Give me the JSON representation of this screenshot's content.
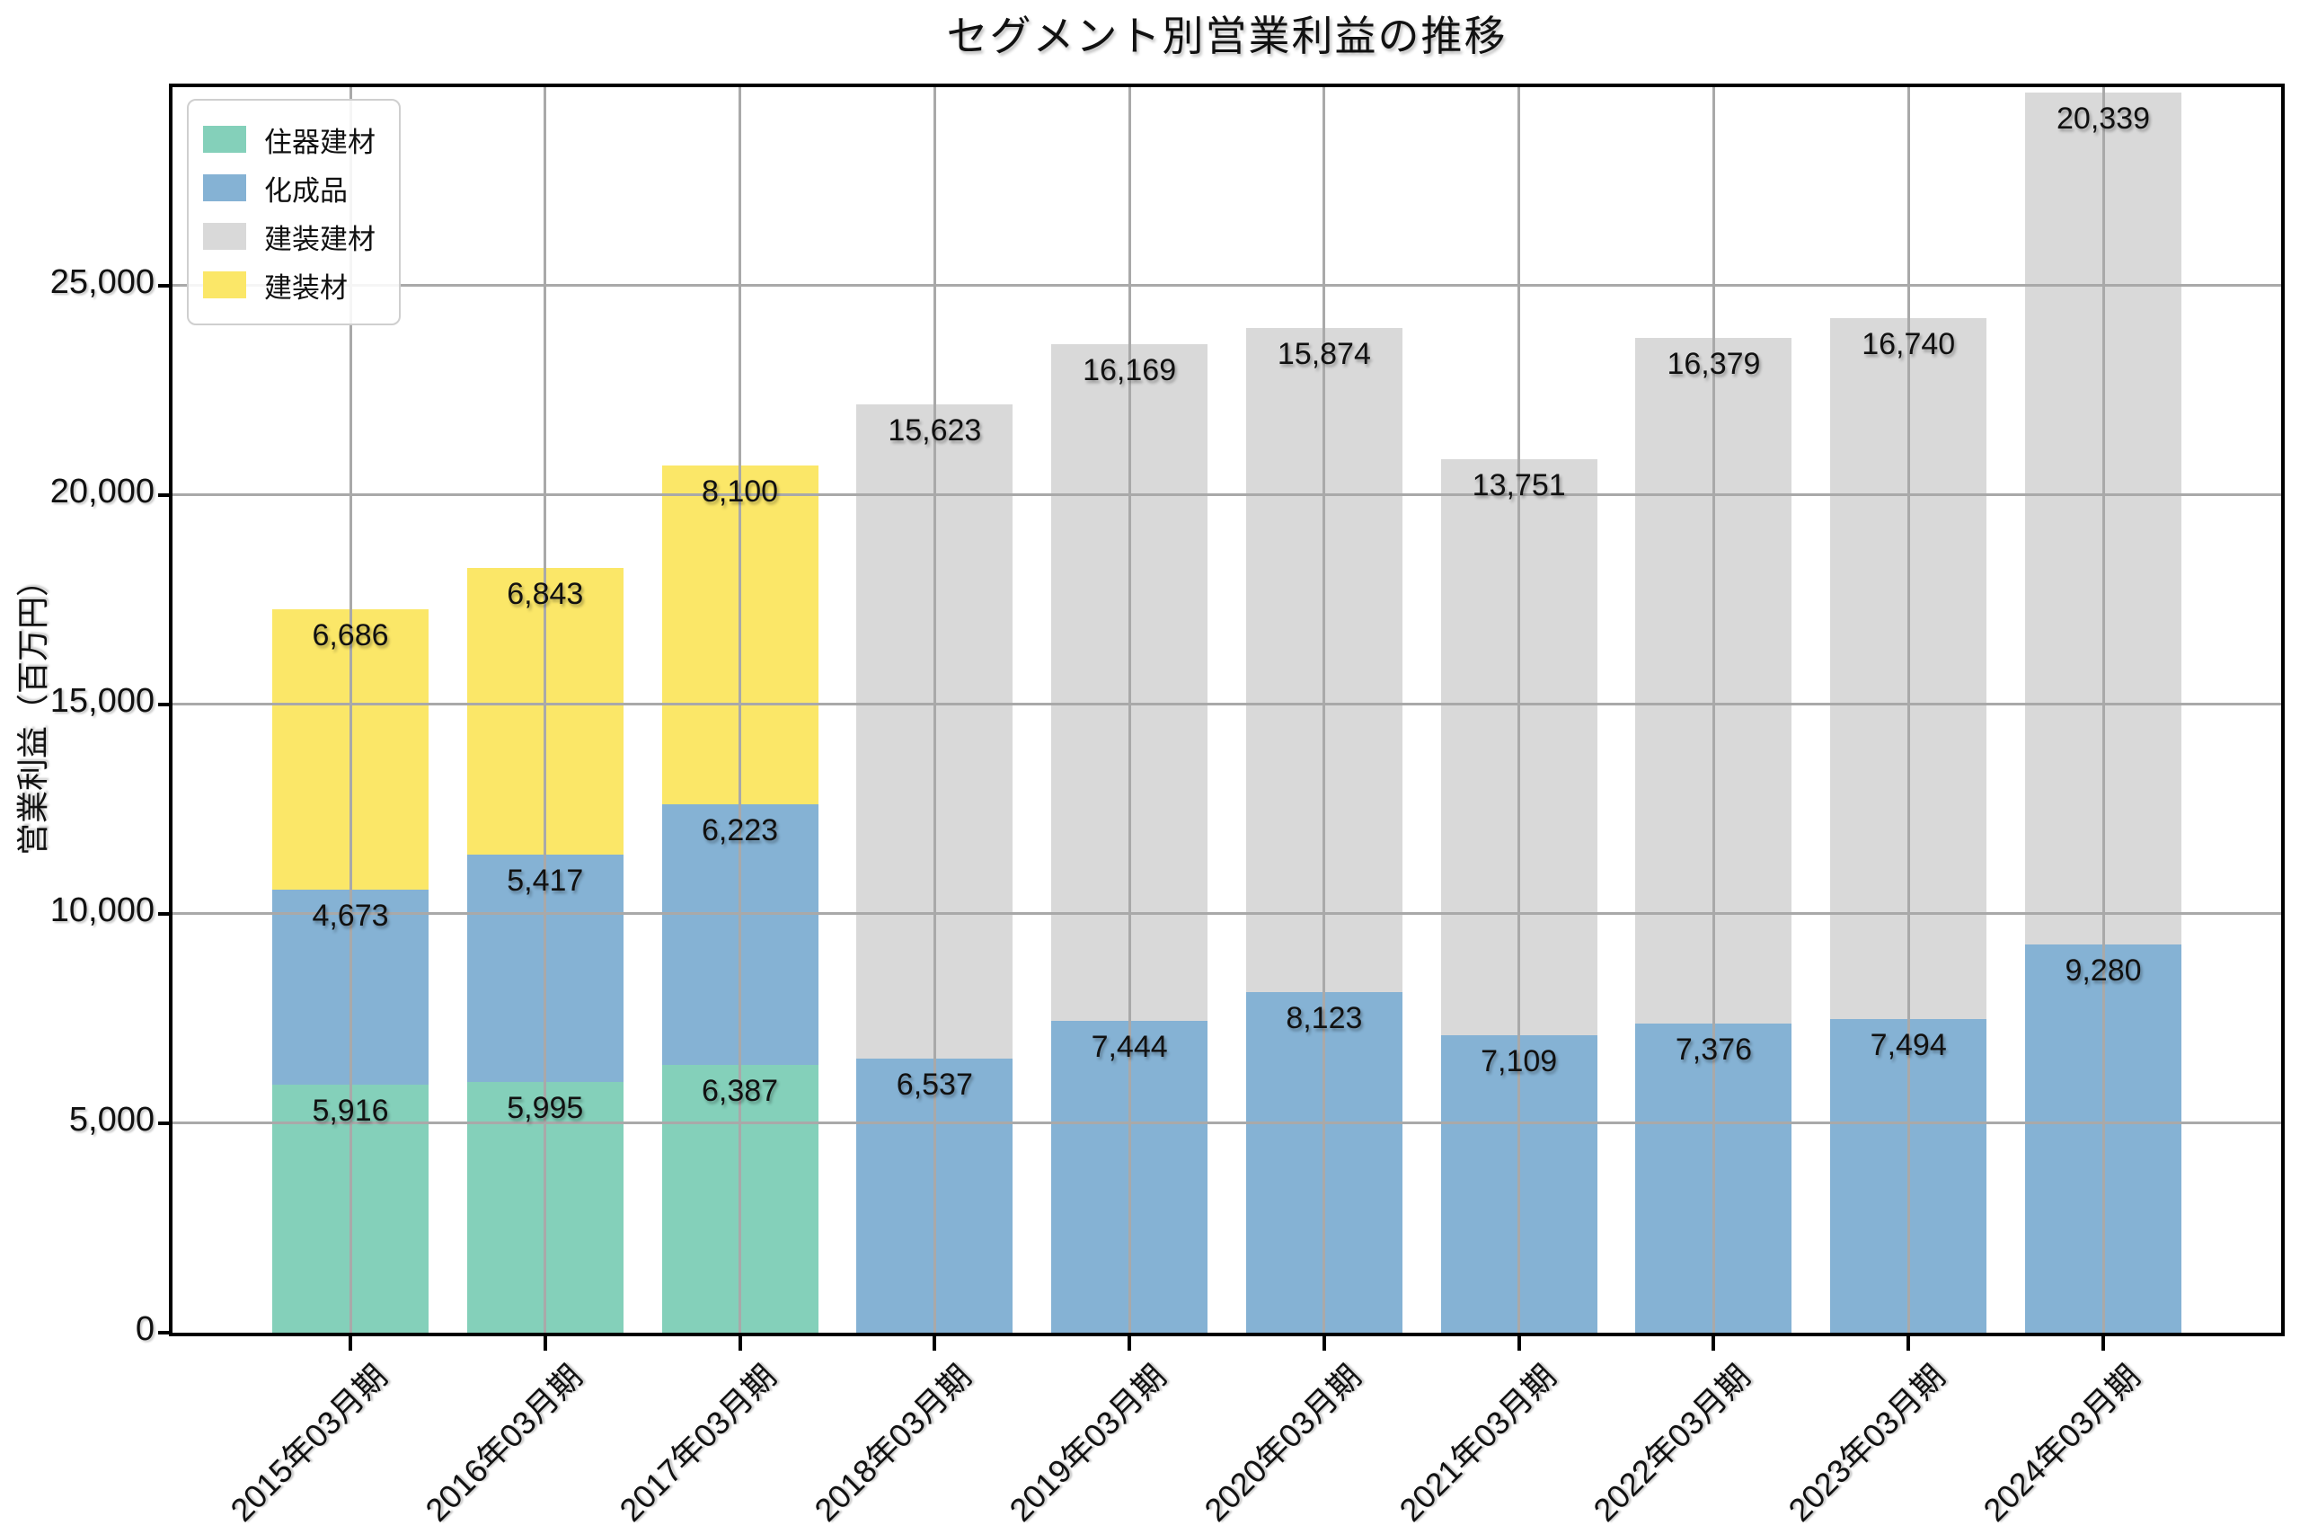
{
  "title": "セグメント別営業利益の推移",
  "chart_data": {
    "type": "bar",
    "stacked": true,
    "title": "セグメント別営業利益の推移",
    "xlabel": "",
    "ylabel": "営業利益（百万円）",
    "categories": [
      "2015年03月期",
      "2016年03月期",
      "2017年03月期",
      "2018年03月期",
      "2019年03月期",
      "2020年03月期",
      "2021年03月期",
      "2022年03月期",
      "2023年03月期",
      "2024年03月期"
    ],
    "series": [
      {
        "name": "住器建材",
        "color": "#84d0ba",
        "values": [
          5916,
          5995,
          6387,
          null,
          null,
          null,
          null,
          null,
          null,
          null
        ]
      },
      {
        "name": "化成品",
        "color": "#85b2d4",
        "values": [
          4673,
          5417,
          6223,
          6537,
          7444,
          8123,
          7109,
          7376,
          7494,
          9280
        ]
      },
      {
        "name": "建装建材",
        "color": "#d9d9d9",
        "values": [
          null,
          null,
          null,
          15623,
          16169,
          15874,
          13751,
          16379,
          16740,
          20339
        ]
      },
      {
        "name": "建装材",
        "color": "#fbe768",
        "values": [
          6686,
          6843,
          8100,
          null,
          null,
          null,
          null,
          null,
          null,
          null
        ]
      }
    ],
    "totals": [
      17275,
      18255,
      20710,
      22160,
      23613,
      23997,
      20860,
      23755,
      24234,
      29619
    ],
    "yticks": [
      0,
      5000,
      10000,
      15000,
      20000,
      25000
    ],
    "ylim": [
      0,
      29742
    ],
    "grid": true,
    "grid_color": "#a9a9a9",
    "legend_position": "upper-left",
    "value_labels": true,
    "bar_label_color": "#111111",
    "background_color": "#ffffff"
  }
}
